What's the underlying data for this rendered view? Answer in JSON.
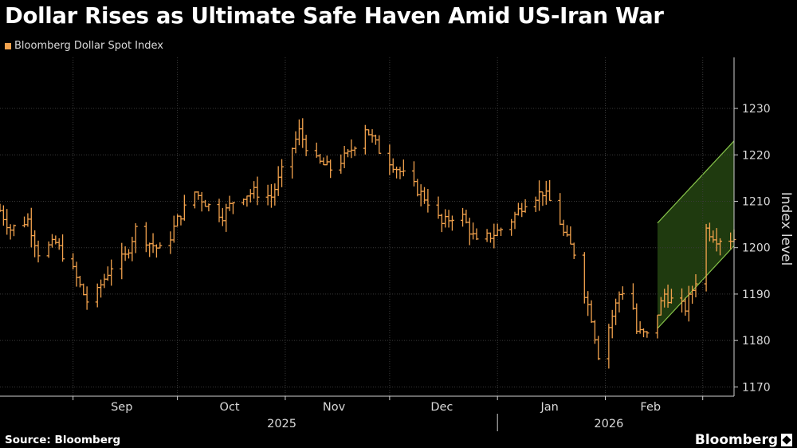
{
  "header": {
    "title": "Dollar Rises as Ultimate Safe Haven Amid US-Iran War"
  },
  "footer": {
    "source": "Source: Bloomberg",
    "brand": "Bloomberg"
  },
  "colors": {
    "series": "#f2a24d",
    "channel_fill": "#1f3a0f",
    "channel_line": "#86c34a",
    "grid": "#3a3a3a",
    "axis_text": "#d9d9d9"
  },
  "chart_data": {
    "type": "ohlc",
    "series_name": "Bloomberg Dollar Spot Index",
    "ylabel": "Index level",
    "ylim": [
      1168,
      1241
    ],
    "y_ticks": [
      1170,
      1180,
      1190,
      1200,
      1210,
      1220,
      1230
    ],
    "x_start": "2025-08-11",
    "x_end": "2026-03-10",
    "month_labels": [
      {
        "label": "Sep",
        "date": "2025-09-15"
      },
      {
        "label": "Oct",
        "date": "2025-10-16"
      },
      {
        "label": "Nov",
        "date": "2025-11-15"
      },
      {
        "label": "Dec",
        "date": "2025-12-16"
      },
      {
        "label": "Jan",
        "date": "2026-01-16"
      },
      {
        "label": "Feb",
        "date": "2026-02-14"
      }
    ],
    "month_boundaries": [
      "2025-09-01",
      "2025-10-01",
      "2025-11-01",
      "2025-12-01",
      "2026-01-01",
      "2026-02-01",
      "2026-03-01"
    ],
    "year_labels": [
      {
        "label": "2025",
        "date": "2025-10-31"
      },
      {
        "label": "2026",
        "date": "2026-02-02"
      }
    ],
    "year_boundary": "2026-01-01",
    "channel": {
      "upper": [
        {
          "date": "2026-02-16",
          "value": 1205.3
        },
        {
          "date": "2026-03-10",
          "value": 1223
        }
      ],
      "lower": [
        {
          "date": "2026-02-16",
          "value": 1182.6
        },
        {
          "date": "2026-03-10",
          "value": 1200.4
        }
      ]
    },
    "keypoints": [
      [
        "2025-08-11",
        1208
      ],
      [
        "2025-08-14",
        1204
      ],
      [
        "2025-08-19",
        1206
      ],
      [
        "2025-08-22",
        1199
      ],
      [
        "2025-08-27",
        1201
      ],
      [
        "2025-09-01",
        1195
      ],
      [
        "2025-09-04",
        1190
      ],
      [
        "2025-09-06",
        1187
      ],
      [
        "2025-09-09",
        1192
      ],
      [
        "2025-09-12",
        1196
      ],
      [
        "2025-09-16",
        1198
      ],
      [
        "2025-09-19",
        1204
      ],
      [
        "2025-09-23",
        1201
      ],
      [
        "2025-09-27",
        1199
      ],
      [
        "2025-10-01",
        1206
      ],
      [
        "2025-10-06",
        1212
      ],
      [
        "2025-10-10",
        1209
      ],
      [
        "2025-10-14",
        1207
      ],
      [
        "2025-10-18",
        1211
      ],
      [
        "2025-10-23",
        1212
      ],
      [
        "2025-10-28",
        1211
      ],
      [
        "2025-11-01",
        1218
      ],
      [
        "2025-11-05",
        1225
      ],
      [
        "2025-11-09",
        1219
      ],
      [
        "2025-11-14",
        1217
      ],
      [
        "2025-11-19",
        1220
      ],
      [
        "2025-11-24",
        1226
      ],
      [
        "2025-11-28",
        1221
      ],
      [
        "2025-12-02",
        1218
      ],
      [
        "2025-12-07",
        1214
      ],
      [
        "2025-12-12",
        1210
      ],
      [
        "2025-12-16",
        1205
      ],
      [
        "2025-12-21",
        1208
      ],
      [
        "2025-12-26",
        1201
      ],
      [
        "2025-12-31",
        1203
      ],
      [
        "2026-01-04",
        1205
      ],
      [
        "2026-01-09",
        1210
      ],
      [
        "2026-01-14",
        1212
      ],
      [
        "2026-01-18",
        1208
      ],
      [
        "2026-01-20",
        1203
      ],
      [
        "2026-01-23",
        1199
      ],
      [
        "2026-01-25",
        1193
      ],
      [
        "2026-01-28",
        1185
      ],
      [
        "2026-01-30",
        1177
      ],
      [
        "2026-02-02",
        1183
      ],
      [
        "2026-02-05",
        1190
      ],
      [
        "2026-02-08",
        1192
      ],
      [
        "2026-02-10",
        1182
      ],
      [
        "2026-02-13",
        1181
      ],
      [
        "2026-02-16",
        1186
      ],
      [
        "2026-02-18",
        1190
      ],
      [
        "2026-02-21",
        1188
      ],
      [
        "2026-02-24",
        1187
      ],
      [
        "2026-02-27",
        1193
      ],
      [
        "2026-03-02",
        1204
      ],
      [
        "2026-03-05",
        1202
      ]
    ]
  }
}
